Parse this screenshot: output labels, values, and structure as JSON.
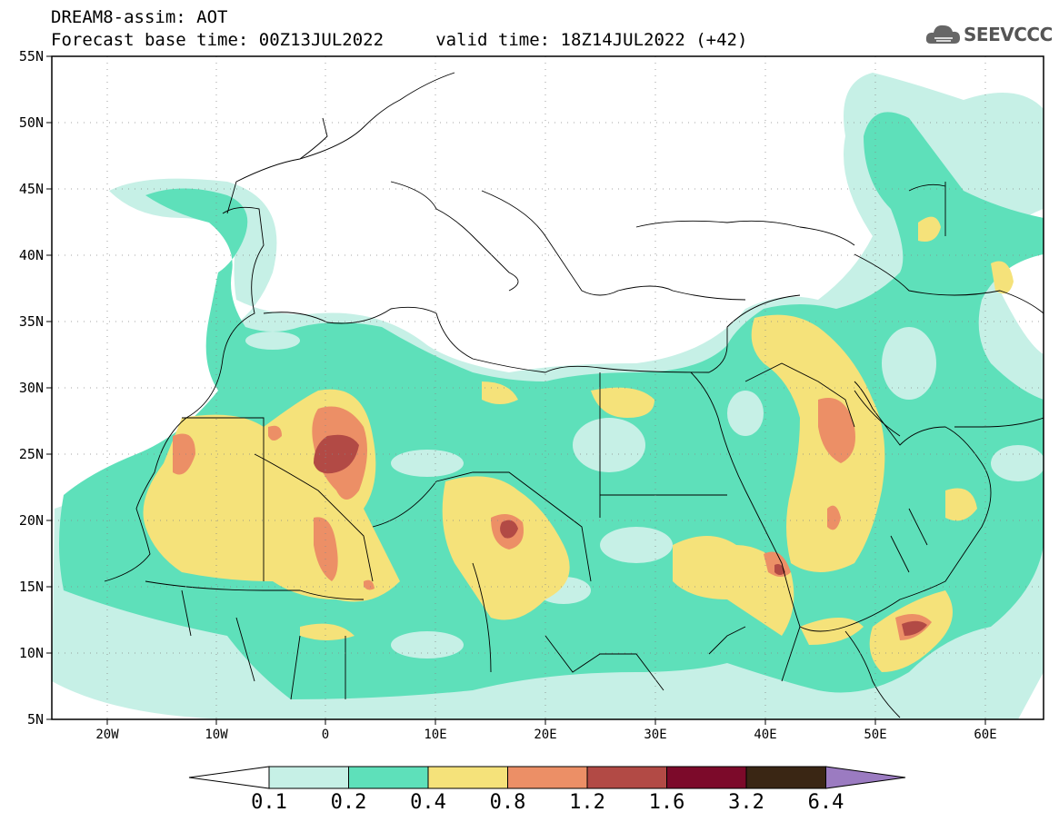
{
  "title": {
    "line1": "DREAM8-assim: AOT",
    "line2": "Forecast base time: 00Z13JUL2022     valid time: 18Z14JUL2022 (+42)"
  },
  "logo": {
    "text": "SEEVCCC",
    "icon": "cloud-icon"
  },
  "axes": {
    "lat_labels": [
      "55N",
      "50N",
      "45N",
      "40N",
      "35N",
      "30N",
      "25N",
      "20N",
      "15N",
      "10N",
      "5N"
    ],
    "lon_labels": [
      "20W",
      "10W",
      "0",
      "10E",
      "20E",
      "30E",
      "40E",
      "50E",
      "60E"
    ]
  },
  "colorbar": {
    "labels": [
      "0.1",
      "0.2",
      "0.4",
      "0.8",
      "1.2",
      "1.6",
      "3.2",
      "6.4"
    ],
    "colors": [
      "#c6f0e6",
      "#5ee0ba",
      "#f5e27a",
      "#ec8f66",
      "#b24a45",
      "#7c0a2a",
      "#3a2614",
      "#9b7bc1"
    ]
  },
  "map": {
    "lon_range": [
      -25,
      65
    ],
    "lat_range": [
      5,
      55
    ],
    "grid": "dotted"
  }
}
